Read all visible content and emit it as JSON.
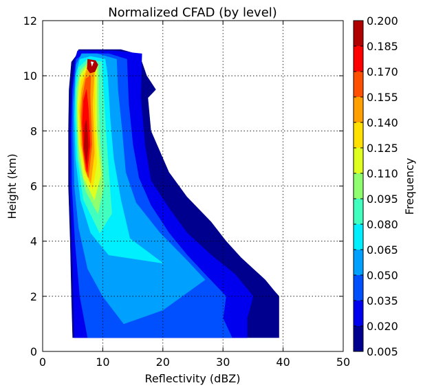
{
  "chart_data": {
    "type": "contour",
    "title": "Normalized CFAD (by level)",
    "xlabel": "Reflectivity (dBZ)",
    "ylabel": "Height (km)",
    "xlim": [
      0,
      50
    ],
    "ylim": [
      0,
      12
    ],
    "xticks": [
      "0",
      "10",
      "20",
      "30",
      "40",
      "50"
    ],
    "yticks": [
      "0",
      "2",
      "4",
      "6",
      "8",
      "10",
      "12"
    ],
    "grid": true,
    "colorbar": {
      "label": "Frequency",
      "levels": [
        0.005,
        0.02,
        0.035,
        0.05,
        0.065,
        0.08,
        0.095,
        0.11,
        0.125,
        0.14,
        0.155,
        0.17,
        0.185,
        0.2
      ],
      "tick_labels": [
        "0.005",
        "0.020",
        "0.035",
        "0.050",
        "0.065",
        "0.080",
        "0.095",
        "0.110",
        "0.125",
        "0.140",
        "0.155",
        "0.170",
        "0.185",
        "0.200"
      ],
      "colors": [
        "#00008f",
        "#0000ef",
        "#0050ff",
        "#00a0ff",
        "#00efff",
        "#40ffbf",
        "#8fff70",
        "#dfff20",
        "#ffe000",
        "#ffa000",
        "#ff5000",
        "#ff0000",
        "#b00000"
      ]
    },
    "contours": [
      {
        "level": 0.005,
        "points": [
          [
            5.0,
            0.5
          ],
          [
            39.3,
            0.5
          ],
          [
            39.3,
            2.0
          ],
          [
            38.5,
            2.2
          ],
          [
            37,
            2.6
          ],
          [
            35,
            3.0
          ],
          [
            33,
            3.4
          ],
          [
            30.5,
            4.0
          ],
          [
            28,
            4.7
          ],
          [
            24,
            5.6
          ],
          [
            21,
            6.5
          ],
          [
            18,
            8.0
          ],
          [
            17.5,
            9.2
          ],
          [
            18.8,
            9.5
          ],
          [
            17.3,
            10.0
          ],
          [
            16.5,
            10.5
          ],
          [
            15.5,
            10.8
          ],
          [
            13,
            10.95
          ],
          [
            8,
            10.95
          ],
          [
            6,
            10.95
          ],
          [
            5.5,
            10.7
          ],
          [
            4.8,
            10.5
          ],
          [
            4.4,
            9.5
          ],
          [
            4.3,
            8
          ],
          [
            4.3,
            6
          ],
          [
            4.6,
            4
          ],
          [
            4.8,
            2
          ],
          [
            5.0,
            0.5
          ]
        ]
      },
      {
        "level": 0.02,
        "points": [
          [
            5.3,
            0.5
          ],
          [
            34,
            0.5
          ],
          [
            34,
            1.2
          ],
          [
            35,
            2.0
          ],
          [
            32,
            2.8
          ],
          [
            28,
            3.5
          ],
          [
            24,
            4.3
          ],
          [
            21,
            5.2
          ],
          [
            18,
            6.2
          ],
          [
            17,
            7.5
          ],
          [
            16.3,
            9.2
          ],
          [
            16.5,
            10.8
          ],
          [
            12,
            10.9
          ],
          [
            7,
            10.9
          ],
          [
            5.8,
            10.9
          ],
          [
            5.3,
            10.5
          ],
          [
            4.8,
            9.5
          ],
          [
            4.6,
            8
          ],
          [
            4.6,
            6
          ],
          [
            4.9,
            4
          ],
          [
            5.1,
            2
          ],
          [
            5.3,
            0.5
          ]
        ]
      },
      {
        "level": 0.035,
        "points": [
          [
            7.5,
            0.5
          ],
          [
            31.5,
            0.5
          ],
          [
            30,
            1.2
          ],
          [
            30.5,
            2.0
          ],
          [
            27,
            2.8
          ],
          [
            24,
            3.5
          ],
          [
            21,
            4.3
          ],
          [
            18,
            5.3
          ],
          [
            16,
            6.3
          ],
          [
            15,
            7.5
          ],
          [
            14.3,
            9
          ],
          [
            14.0,
            10.6
          ],
          [
            11,
            10.8
          ],
          [
            7,
            10.8
          ],
          [
            5.6,
            10.6
          ],
          [
            5.0,
            9.5
          ],
          [
            4.8,
            8
          ],
          [
            4.9,
            6
          ],
          [
            5.4,
            4
          ],
          [
            6.2,
            2
          ],
          [
            7.5,
            0.5
          ]
        ]
      },
      {
        "level": 0.05,
        "points": [
          [
            13.5,
            1.0
          ],
          [
            20,
            1.5
          ],
          [
            27,
            2.6
          ],
          [
            24,
            3.3
          ],
          [
            19.5,
            4.3
          ],
          [
            15.5,
            5.4
          ],
          [
            13.8,
            6.5
          ],
          [
            13.2,
            8
          ],
          [
            12.5,
            9.5
          ],
          [
            12.3,
            10.6
          ],
          [
            9,
            10.8
          ],
          [
            6.5,
            10.8
          ],
          [
            5.6,
            10.4
          ],
          [
            5.1,
            9
          ],
          [
            5.1,
            8
          ],
          [
            5.3,
            6
          ],
          [
            6.0,
            4.5
          ],
          [
            7.5,
            3
          ],
          [
            10,
            2
          ],
          [
            13.5,
            1.0
          ]
        ]
      },
      {
        "level": 0.065,
        "points": [
          [
            11,
            3.5
          ],
          [
            20,
            3.2
          ],
          [
            14.5,
            4.1
          ],
          [
            13.0,
            5.5
          ],
          [
            11.8,
            7
          ],
          [
            11.2,
            8.5
          ],
          [
            10.8,
            10
          ],
          [
            10.4,
            10.6
          ],
          [
            8,
            10.7
          ],
          [
            6.2,
            10.6
          ],
          [
            5.5,
            10
          ],
          [
            5.3,
            8.5
          ],
          [
            5.5,
            7
          ],
          [
            6.3,
            5.5
          ],
          [
            8,
            4.3
          ],
          [
            11,
            3.5
          ]
        ]
      },
      {
        "level": 0.08,
        "points": [
          [
            9.5,
            4.3
          ],
          [
            11.5,
            5.0
          ],
          [
            11.0,
            6.5
          ],
          [
            10.5,
            8
          ],
          [
            10.1,
            9.5
          ],
          [
            9.8,
            10.5
          ],
          [
            7.5,
            10.6
          ],
          [
            6.0,
            10.3
          ],
          [
            5.5,
            9.5
          ],
          [
            5.5,
            8.5
          ],
          [
            5.8,
            7
          ],
          [
            6.8,
            5.5
          ],
          [
            9.5,
            4.3
          ]
        ]
      },
      {
        "level": 0.095,
        "points": [
          [
            9.2,
            5.0
          ],
          [
            10.2,
            6.0
          ],
          [
            9.6,
            7.5
          ],
          [
            9.3,
            9.0
          ],
          [
            9.3,
            10.4
          ],
          [
            7.6,
            10.5
          ],
          [
            6.3,
            10.2
          ],
          [
            5.7,
            9.5
          ],
          [
            5.7,
            8.5
          ],
          [
            6.0,
            7
          ],
          [
            7.2,
            5.8
          ],
          [
            9.2,
            5.0
          ]
        ]
      },
      {
        "level": 0.11,
        "points": [
          [
            8.6,
            5.5
          ],
          [
            9.7,
            6.4
          ],
          [
            9.0,
            8
          ],
          [
            9.0,
            10.3
          ],
          [
            7.5,
            10.4
          ],
          [
            6.2,
            10.0
          ],
          [
            5.8,
            9
          ],
          [
            6.0,
            7.5
          ],
          [
            6.8,
            6.3
          ],
          [
            8.6,
            5.5
          ]
        ]
      },
      {
        "level": 0.125,
        "points": [
          [
            8.3,
            5.9
          ],
          [
            9.0,
            6.8
          ],
          [
            8.7,
            8.5
          ],
          [
            8.7,
            10.2
          ],
          [
            7.4,
            10.3
          ],
          [
            6.4,
            9.8
          ],
          [
            6.0,
            8.8
          ],
          [
            6.2,
            7.5
          ],
          [
            7.0,
            6.5
          ],
          [
            8.3,
            5.9
          ]
        ]
      },
      {
        "level": 0.14,
        "points": [
          [
            8.0,
            6.1
          ],
          [
            8.6,
            7.2
          ],
          [
            8.3,
            9
          ],
          [
            8.6,
            10.1
          ],
          [
            7.3,
            10.2
          ],
          [
            6.5,
            9.5
          ],
          [
            6.2,
            8.7
          ],
          [
            6.4,
            7.5
          ],
          [
            7.1,
            6.6
          ],
          [
            8.0,
            6.1
          ]
        ]
      },
      {
        "level": 0.155,
        "points": [
          [
            7.6,
            6.3
          ],
          [
            8.2,
            7.5
          ],
          [
            7.9,
            9.3
          ],
          [
            8.0,
            10.0
          ],
          [
            7.2,
            9.9
          ],
          [
            6.6,
            9.2
          ],
          [
            6.4,
            8.5
          ],
          [
            6.6,
            7.5
          ],
          [
            7.1,
            6.6
          ],
          [
            7.6,
            6.3
          ]
        ]
      },
      {
        "level": 0.17,
        "points": [
          [
            7.4,
            6.5
          ],
          [
            7.9,
            7.5
          ],
          [
            7.6,
            8.8
          ],
          [
            7.3,
            9.5
          ],
          [
            6.8,
            9.1
          ],
          [
            6.6,
            8.3
          ],
          [
            6.8,
            7.3
          ],
          [
            7.4,
            6.5
          ]
        ]
      },
      {
        "level": 0.185,
        "points": [
          [
            7.3,
            6.8
          ],
          [
            7.6,
            7.5
          ],
          [
            7.3,
            8.4
          ],
          [
            7.0,
            8.2
          ],
          [
            6.9,
            7.4
          ],
          [
            7.3,
            6.8
          ]
        ]
      }
    ],
    "peak_region": [
      [
        7.5,
        10.6
      ],
      [
        8.8,
        10.55
      ],
      [
        9.2,
        10.4
      ],
      [
        8.7,
        10.15
      ],
      [
        7.9,
        10.1
      ],
      [
        7.4,
        10.25
      ],
      [
        7.5,
        10.6
      ]
    ]
  }
}
